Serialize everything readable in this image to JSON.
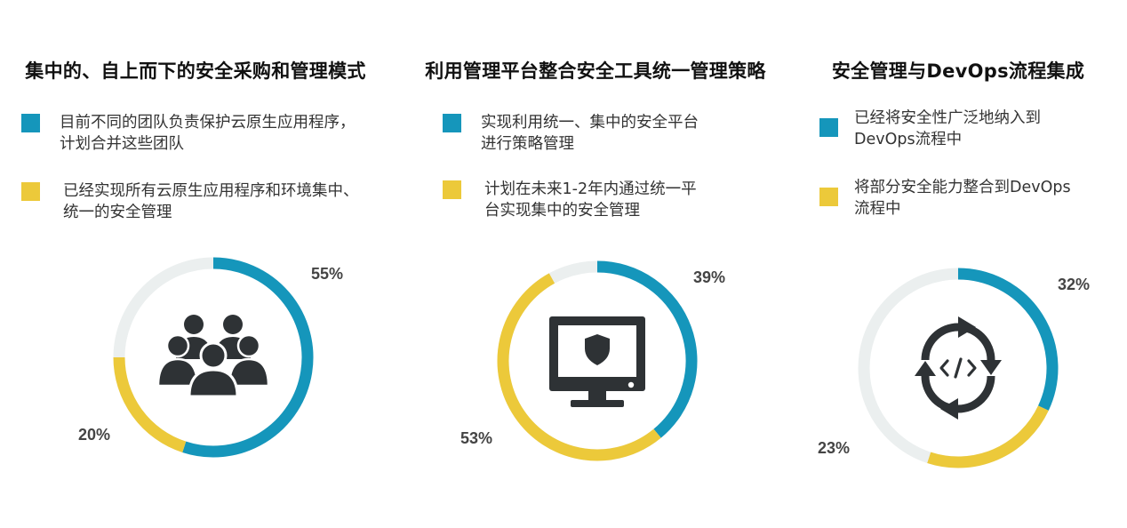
{
  "colors": {
    "blue": "#1596bb",
    "yellow": "#ecc93a",
    "gray": "#ebefef",
    "icon": "#2e3235"
  },
  "panels": [
    {
      "title": "集中的、自上而下的安全采购和管理模式",
      "icon": "people-group-icon",
      "legend": [
        {
          "color": "blue",
          "lines": [
            "目前不同的团队负责保护云原生应用程序，",
            "计划合并这些团队"
          ]
        },
        {
          "color": "yellow",
          "lines": [
            "已经实现所有云原生应用程序和环境集中、",
            "统一的安全管理"
          ]
        }
      ],
      "labels": {
        "blue": "55%",
        "yellow": "20%"
      }
    },
    {
      "title": "利用管理平台整合安全工具统一管理策略",
      "icon": "monitor-shield-icon",
      "legend": [
        {
          "color": "blue",
          "lines": [
            "实现利用统一、集中的安全平台",
            "进行策略管理"
          ]
        },
        {
          "color": "yellow",
          "lines": [
            "计划在未来1-2年内通过统一平",
            "台实现集中的安全管理"
          ]
        }
      ],
      "labels": {
        "blue": "39%",
        "yellow": "53%"
      }
    },
    {
      "title": "安全管理与DevOps流程集成",
      "icon": "code-cycle-icon",
      "legend": [
        {
          "color": "blue",
          "lines": [
            "已经将安全性广泛地纳入到",
            "DevOps流程中"
          ]
        },
        {
          "color": "yellow",
          "lines": [
            "将部分安全能力整合到DevOps",
            "流程中"
          ]
        }
      ],
      "labels": {
        "blue": "32%",
        "yellow": "23%"
      }
    }
  ],
  "chart_data": [
    {
      "type": "pie",
      "title": "集中的、自上而下的安全采购和管理模式",
      "donut": true,
      "slices": [
        {
          "label": "目前不同的团队负责保护云原生应用程序，计划合并这些团队",
          "value": 55,
          "color": "#1596bb"
        },
        {
          "label": "已经实现所有云原生应用程序和环境集中、统一的安全管理",
          "value": 20,
          "color": "#ecc93a"
        }
      ]
    },
    {
      "type": "pie",
      "title": "利用管理平台整合安全工具统一管理策略",
      "donut": true,
      "slices": [
        {
          "label": "实现利用统一、集中的安全平台进行策略管理",
          "value": 39,
          "color": "#1596bb"
        },
        {
          "label": "计划在未来1-2年内通过统一平台实现集中的安全管理",
          "value": 53,
          "color": "#ecc93a"
        }
      ]
    },
    {
      "type": "pie",
      "title": "安全管理与DevOps流程集成",
      "donut": true,
      "slices": [
        {
          "label": "已经将安全性广泛地纳入到DevOps流程中",
          "value": 32,
          "color": "#1596bb"
        },
        {
          "label": "将部分安全能力整合到DevOps流程中",
          "value": 23,
          "color": "#ecc93a"
        }
      ]
    }
  ]
}
